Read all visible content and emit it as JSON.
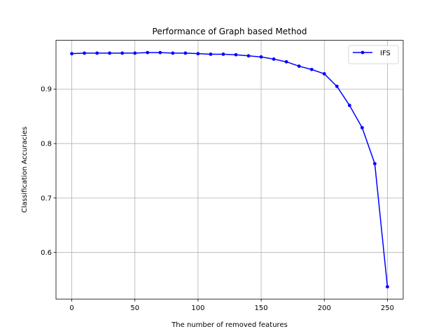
{
  "chart_data": {
    "type": "line",
    "title": "Performance of Graph based Method",
    "xlabel": "The number of removed features",
    "ylabel": "Classification Accuracies",
    "xlim": [
      -12.5,
      262.5
    ],
    "ylim": [
      0.5145,
      0.9895
    ],
    "xticks": [
      0,
      50,
      100,
      150,
      200,
      250
    ],
    "xtick_labels": [
      "0",
      "50",
      "100",
      "150",
      "200",
      "250"
    ],
    "yticks": [
      0.6,
      0.7,
      0.8,
      0.9
    ],
    "ytick_labels": [
      "0.6",
      "0.7",
      "0.8",
      "0.9"
    ],
    "grid": true,
    "legend_position": "top-right",
    "x": [
      0,
      10,
      20,
      30,
      40,
      50,
      60,
      70,
      80,
      90,
      100,
      110,
      120,
      130,
      140,
      150,
      160,
      170,
      180,
      190,
      200,
      210,
      220,
      230,
      240,
      250
    ],
    "series": [
      {
        "name": "IFS",
        "color": "#0000ff",
        "marker": "circle",
        "values": [
          0.965,
          0.966,
          0.966,
          0.966,
          0.966,
          0.966,
          0.967,
          0.967,
          0.966,
          0.966,
          0.965,
          0.964,
          0.964,
          0.963,
          0.961,
          0.959,
          0.955,
          0.95,
          0.942,
          0.936,
          0.928,
          0.905,
          0.87,
          0.829,
          0.763,
          0.537
        ]
      }
    ]
  }
}
